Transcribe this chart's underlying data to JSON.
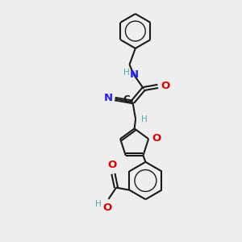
{
  "bg_color": "#eeeeee",
  "bond_color": "#1a1a1a",
  "N_color": "#2222ff",
  "O_color": "#dd0000",
  "C_color": "#1a1a1a",
  "H_color": "#4fa8a8",
  "figsize": [
    3.0,
    3.0
  ],
  "dpi": 100,
  "xlim": [
    0,
    10
  ],
  "ylim": [
    0,
    10
  ]
}
